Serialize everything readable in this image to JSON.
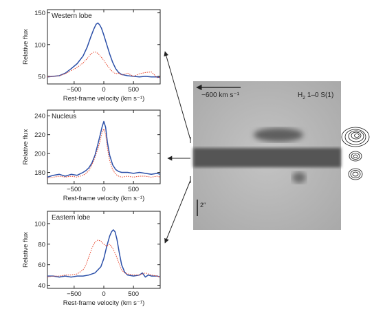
{
  "chart_data": [
    {
      "type": "line",
      "title": "Western lobe",
      "xlabel": "Rest-frame velocity (km s⁻¹)",
      "ylabel": "Relative flux",
      "xlim": [
        -950,
        950
      ],
      "ylim": [
        38,
        155
      ],
      "xticks": [
        -500,
        0,
        500
      ],
      "xtick_labels": [
        "−500",
        "0",
        "500"
      ],
      "yticks": [
        50,
        100,
        150
      ],
      "series": [
        {
          "color": "#2b4fa8",
          "style": "solid",
          "x": [
            -950,
            -850,
            -750,
            -650,
            -550,
            -450,
            -350,
            -280,
            -220,
            -170,
            -130,
            -100,
            -70,
            -40,
            0,
            50,
            100,
            150,
            200,
            250,
            300,
            400,
            500,
            600,
            700,
            800,
            900,
            950
          ],
          "y": [
            49,
            50,
            51,
            55,
            62,
            70,
            82,
            96,
            112,
            124,
            132,
            134,
            131,
            126,
            115,
            100,
            85,
            72,
            62,
            56,
            53,
            51,
            50,
            49,
            50,
            49,
            49,
            48
          ]
        },
        {
          "color": "#e8442a",
          "style": "dotted",
          "x": [
            -950,
            -850,
            -750,
            -650,
            -550,
            -450,
            -350,
            -280,
            -220,
            -170,
            -130,
            -100,
            -70,
            -40,
            0,
            50,
            100,
            150,
            200,
            250,
            300,
            400,
            500,
            600,
            700,
            800,
            900,
            950
          ],
          "y": [
            49,
            50,
            51,
            54,
            59,
            64,
            71,
            78,
            85,
            88,
            88,
            86,
            83,
            80,
            75,
            68,
            62,
            57,
            54,
            55,
            52,
            55,
            50,
            54,
            56,
            57,
            48,
            49
          ]
        }
      ]
    },
    {
      "type": "line",
      "title": "Nucleus",
      "xlabel": "Rest-frame velocity (km s⁻¹)",
      "ylabel": "Relative flux",
      "xlim": [
        -950,
        950
      ],
      "ylim": [
        168,
        246
      ],
      "xticks": [
        -500,
        0,
        500
      ],
      "xtick_labels": [
        "−500",
        "0",
        "500"
      ],
      "yticks": [
        180,
        200,
        220,
        240
      ],
      "series": [
        {
          "color": "#2b4fa8",
          "style": "solid",
          "x": [
            -950,
            -850,
            -750,
            -650,
            -550,
            -450,
            -350,
            -300,
            -250,
            -200,
            -150,
            -100,
            -60,
            -30,
            0,
            30,
            60,
            100,
            150,
            200,
            250,
            300,
            400,
            500,
            600,
            700,
            800,
            900,
            950
          ],
          "y": [
            175,
            177,
            178,
            176,
            178,
            177,
            180,
            182,
            185,
            190,
            198,
            210,
            220,
            228,
            234,
            228,
            212,
            198,
            188,
            183,
            181,
            180,
            180,
            179,
            180,
            179,
            178,
            179,
            178
          ]
        },
        {
          "color": "#e8442a",
          "style": "dotted",
          "x": [
            -950,
            -850,
            -750,
            -650,
            -550,
            -450,
            -350,
            -300,
            -250,
            -200,
            -150,
            -100,
            -60,
            -30,
            0,
            30,
            60,
            100,
            150,
            200,
            250,
            300,
            400,
            500,
            600,
            700,
            800,
            900,
            950
          ],
          "y": [
            174,
            175,
            176,
            175,
            176,
            175,
            177,
            179,
            182,
            188,
            196,
            205,
            214,
            222,
            226,
            220,
            206,
            192,
            183,
            178,
            176,
            175,
            176,
            175,
            176,
            176,
            175,
            176,
            175
          ]
        }
      ]
    },
    {
      "type": "line",
      "title": "Eastern lobe",
      "xlabel": "Rest-frame velocity (km s⁻¹)",
      "ylabel": "Relative flux",
      "xlim": [
        -950,
        950
      ],
      "ylim": [
        37,
        112
      ],
      "xticks": [
        -500,
        0,
        500
      ],
      "xtick_labels": [
        "−500",
        "0",
        "500"
      ],
      "yticks": [
        40,
        60,
        80,
        100
      ],
      "series": [
        {
          "color": "#2b4fa8",
          "style": "solid",
          "x": [
            -950,
            -850,
            -750,
            -650,
            -550,
            -450,
            -350,
            -250,
            -150,
            -50,
            0,
            50,
            100,
            130,
            160,
            190,
            220,
            260,
            300,
            350,
            400,
            500,
            600,
            650,
            700,
            750,
            800,
            900,
            950
          ],
          "y": [
            49,
            49,
            48,
            49,
            48,
            49,
            49,
            50,
            52,
            58,
            66,
            78,
            88,
            92,
            94,
            92,
            85,
            72,
            60,
            53,
            50,
            49,
            50,
            52,
            48,
            50,
            49,
            49,
            48
          ]
        },
        {
          "color": "#e8442a",
          "style": "dotted",
          "x": [
            -950,
            -850,
            -750,
            -650,
            -550,
            -450,
            -350,
            -300,
            -250,
            -200,
            -150,
            -100,
            -50,
            0,
            50,
            100,
            150,
            200,
            250,
            300,
            350,
            400,
            500,
            600,
            700,
            800,
            900,
            950
          ],
          "y": [
            48,
            49,
            49,
            50,
            50,
            51,
            55,
            60,
            68,
            76,
            82,
            84,
            83,
            80,
            78,
            80,
            76,
            70,
            62,
            55,
            52,
            51,
            50,
            50,
            52,
            50,
            49,
            48
          ]
        }
      ]
    }
  ],
  "image_panel": {
    "velocity_label": "−600 km s⁻¹",
    "line_label_main": "H",
    "line_label_sub": "2",
    "line_label_rest": " 1–0 S(1)",
    "scale_label": "2′′"
  }
}
